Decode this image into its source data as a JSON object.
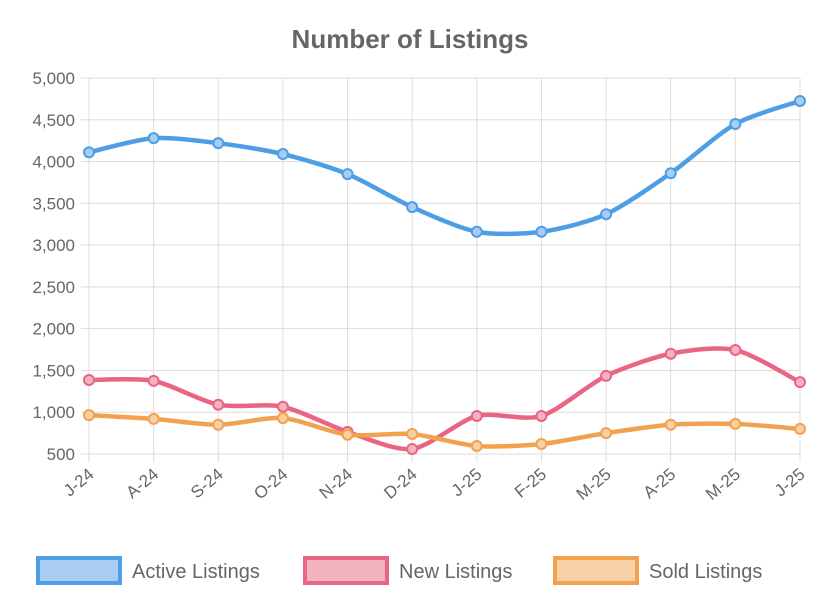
{
  "chart_data": {
    "type": "line",
    "title": "Number of Listings",
    "categories": [
      "J-24",
      "A-24",
      "S-24",
      "O-24",
      "N-24",
      "D-24",
      "J-25",
      "F-25",
      "M-25",
      "A-25",
      "M-25",
      "J-25"
    ],
    "ylim": [
      500,
      5000
    ],
    "yticks": [
      500,
      1000,
      1500,
      2000,
      2500,
      3000,
      3500,
      4000,
      4500,
      5000
    ],
    "ytick_labels": [
      "500",
      "1,000",
      "1,500",
      "2,000",
      "2,500",
      "3,000",
      "3,500",
      "4,000",
      "4,500",
      "5,000"
    ],
    "grid": true,
    "legend_position": "bottom",
    "series": [
      {
        "name": "Active Listings",
        "color": "#4e9ee6",
        "fill": "#a9cdf1",
        "values": [
          4110,
          4280,
          4220,
          4090,
          3850,
          3455,
          3160,
          3160,
          3370,
          3860,
          4450,
          4725
        ]
      },
      {
        "name": "New Listings",
        "color": "#ea6584",
        "fill": "#f3b4c2",
        "values": [
          1385,
          1375,
          1090,
          1065,
          765,
          560,
          955,
          955,
          1435,
          1700,
          1745,
          1360
        ]
      },
      {
        "name": "Sold Listings",
        "color": "#f2a24e",
        "fill": "#f8d0a6",
        "values": [
          965,
          920,
          850,
          930,
          730,
          740,
          595,
          620,
          750,
          850,
          860,
          800
        ]
      }
    ]
  }
}
